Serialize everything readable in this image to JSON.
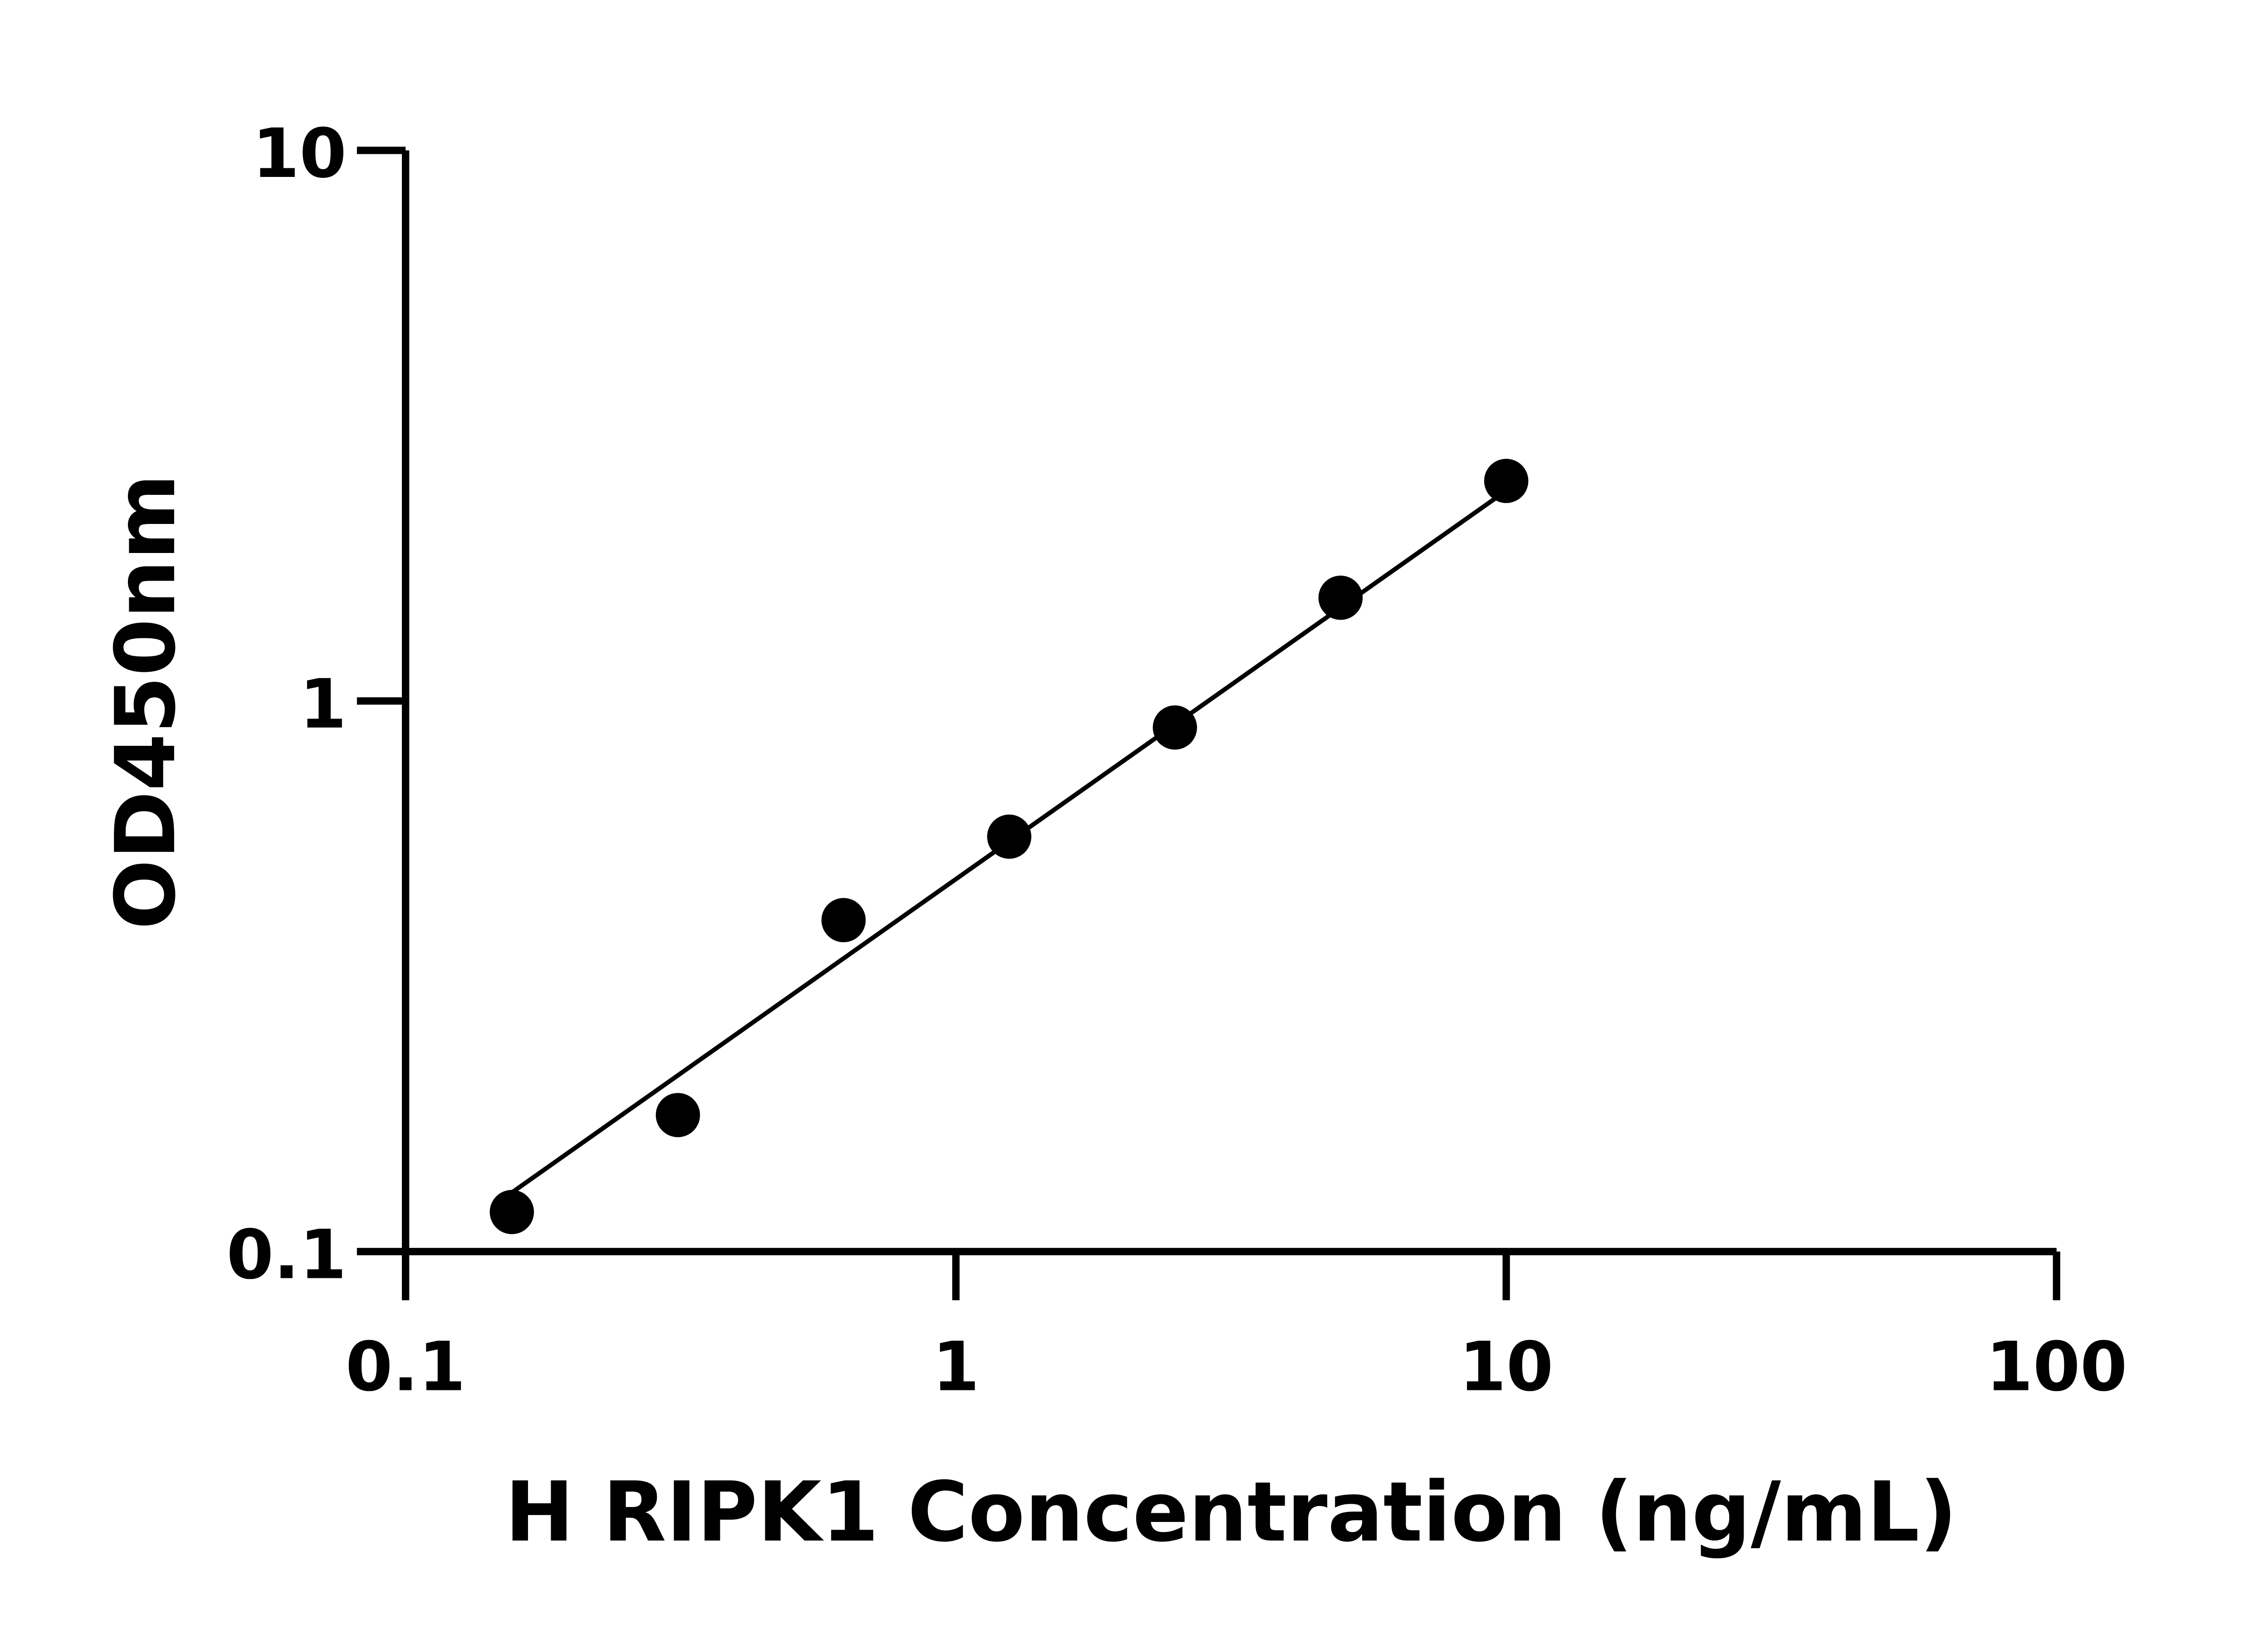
{
  "chart_data": {
    "type": "scatter",
    "title": "",
    "xlabel": "H RIPK1 Concentration (ng/mL)",
    "ylabel": "OD450nm",
    "xscale": "log",
    "yscale": "log",
    "xlim": [
      0.1,
      100
    ],
    "ylim": [
      0.1,
      10
    ],
    "xticks": [
      "0.1",
      "1",
      "10",
      "100"
    ],
    "yticks": [
      "0.1",
      "1",
      "10"
    ],
    "grid": false,
    "legend": "none",
    "series": [
      {
        "x": [
          0.156,
          0.3125,
          0.625,
          1.25,
          2.5,
          5,
          10
        ],
        "y": [
          0.118,
          0.177,
          0.4,
          0.567,
          0.895,
          1.54,
          2.51
        ],
        "marker": "circle",
        "color": "#000000"
      }
    ],
    "fit_line": {
      "x": [
        0.156,
        10
      ],
      "y": [
        0.128,
        2.41
      ],
      "color": "#000000"
    }
  }
}
